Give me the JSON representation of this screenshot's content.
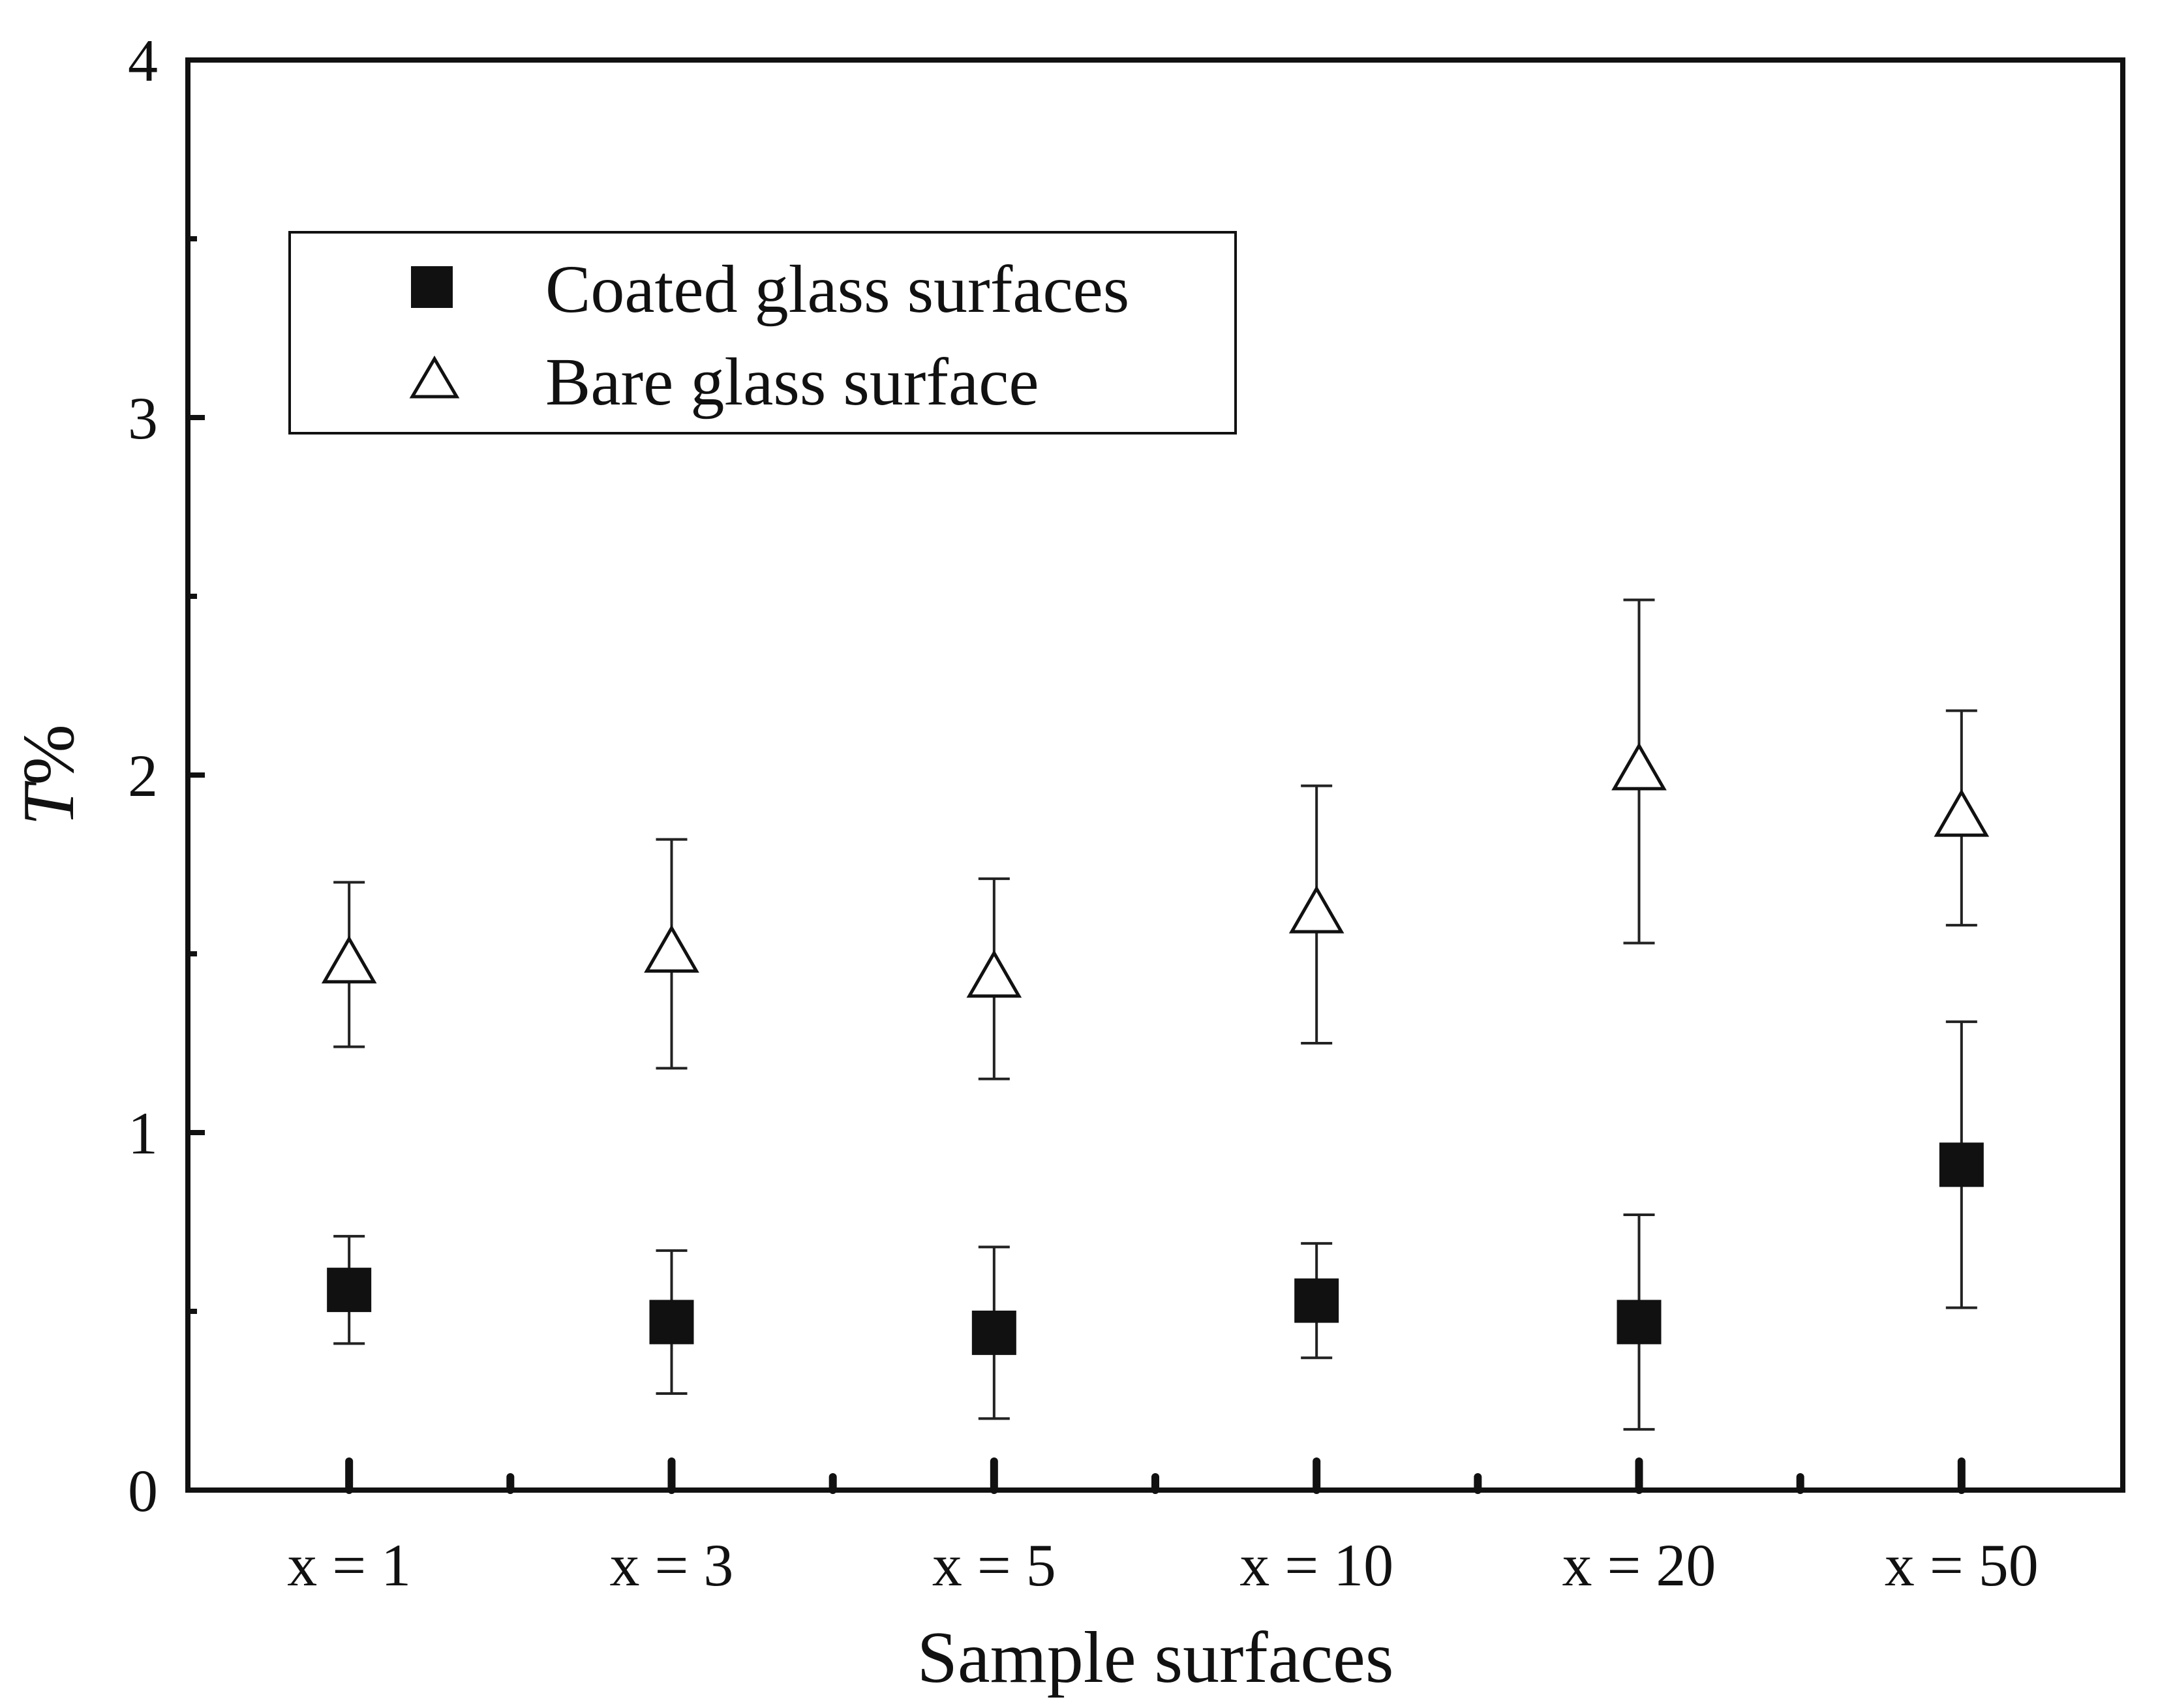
{
  "chart_data": {
    "type": "scatter",
    "title": "",
    "xlabel": "Sample surfaces",
    "ylabel_italic": "T",
    "ylabel_rest": "%",
    "categories": [
      "x = 1",
      "x = 3",
      "x = 5",
      "x = 10",
      "x = 20",
      "x = 50"
    ],
    "ylim": [
      0,
      4
    ],
    "yticks": [
      "0",
      "1",
      "2",
      "3",
      "4"
    ],
    "legend_position": "top-left",
    "series": [
      {
        "name": "Coated glass surfaces",
        "marker": "filled-square",
        "values": [
          0.56,
          0.47,
          0.44,
          0.53,
          0.47,
          0.91
        ],
        "errors": [
          0.15,
          0.2,
          0.24,
          0.16,
          0.3,
          0.4
        ]
      },
      {
        "name": "Bare glass surface",
        "marker": "open-triangle",
        "values": [
          1.47,
          1.5,
          1.43,
          1.61,
          2.01,
          1.88
        ],
        "errors": [
          0.23,
          0.32,
          0.28,
          0.36,
          0.48,
          0.3
        ]
      }
    ]
  }
}
